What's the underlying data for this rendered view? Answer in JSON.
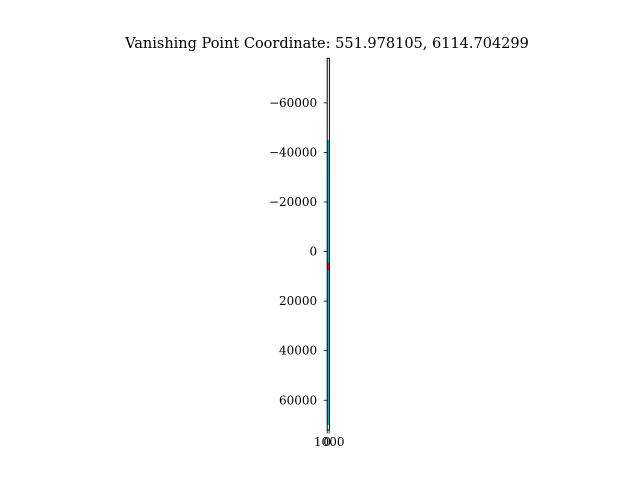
{
  "chart_data": {
    "type": "line",
    "title": "Vanishing Point Coordinate: 551.978105, 6114.704299",
    "xlabel": "",
    "ylabel": "",
    "xlim": [
      0,
      1100
    ],
    "ylim": [
      72000,
      -78000
    ],
    "y_inverted": true,
    "grid": false,
    "x_ticks": [
      {
        "value": 0,
        "label": "0"
      },
      {
        "value": 1000,
        "label": "1000"
      }
    ],
    "y_ticks": [
      {
        "value": -60000,
        "label": "−60000"
      },
      {
        "value": -40000,
        "label": "−40000"
      },
      {
        "value": -20000,
        "label": "−20000"
      },
      {
        "value": 0,
        "label": "0"
      },
      {
        "value": 20000,
        "label": "20000"
      },
      {
        "value": 40000,
        "label": "40000"
      },
      {
        "value": 60000,
        "label": "60000"
      }
    ],
    "series": [
      {
        "color": "#17becf",
        "x": [
          560,
          545
        ],
        "y": [
          -45000,
          70000
        ]
      },
      {
        "color": "#17becf",
        "x": [
          520,
          560
        ],
        "y": [
          -30000,
          62000
        ]
      },
      {
        "color": "#d62728",
        "x": [
          540,
          570
        ],
        "y": [
          4500,
          7500
        ]
      }
    ],
    "vanishing_point": {
      "x": 551.978105,
      "y": 6114.704299,
      "color": "#d62728"
    }
  }
}
